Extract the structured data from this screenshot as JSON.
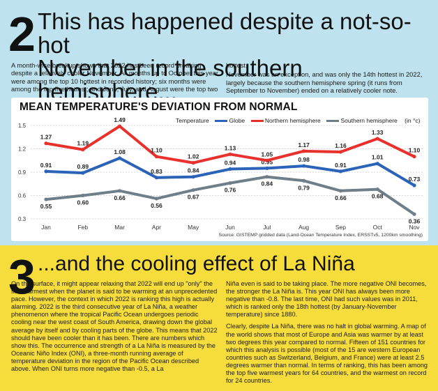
{
  "section2": {
    "number": "2",
    "headline_line1": "This has happened despite a not-so-hot",
    "headline_line2": "November in the southern hemisphere...",
    "body_left": "A month-wise breakup shows that 2022 has been record breaking despite a relatively cooler November. All months up to October this year were among the top 10 hottest in recorded history; six months were among the top five hottest; and June, July, and August were the top two",
    "body_right_1": "hottest.",
    "body_right_2": "November was an exception, and was only the 14th hottest in 2022, largely because the southern hemisphere spring (it runs from September to November) ended on a relatively cooler note."
  },
  "chart_data": {
    "type": "line",
    "title": "MEAN TEMPERATURE'S DEVIATION FROM NORMAL",
    "unit_label": "(in °c)",
    "legend_title": "Temperature",
    "legend_placement": "top-right",
    "categories": [
      "Jan",
      "Feb",
      "Mar",
      "Apr",
      "May",
      "Jun",
      "Jul",
      "Aug",
      "Sep",
      "Oct",
      "Nov"
    ],
    "y_ticks": [
      "1.5",
      "1.2",
      "0.9",
      "0.6",
      "0.3"
    ],
    "ylim": [
      0.3,
      1.5
    ],
    "grid": true,
    "series": [
      {
        "name": "Globe",
        "color": "#2a63b7",
        "values": [
          0.91,
          0.89,
          1.08,
          0.83,
          0.84,
          0.94,
          0.95,
          0.98,
          0.91,
          1.01,
          0.73
        ],
        "labels": [
          "0.91",
          "0.89",
          "1.08",
          "0.83",
          "0.84",
          "0.94",
          "0.95",
          "0.98",
          "0.91",
          "1.01",
          "0.73"
        ]
      },
      {
        "name": "Northern hemisphere",
        "color": "#e8312d",
        "values": [
          1.27,
          1.19,
          1.49,
          1.1,
          1.02,
          1.13,
          1.05,
          1.17,
          1.16,
          1.33,
          1.1
        ],
        "labels": [
          "1.27",
          "1.19",
          "1.49",
          "1.10",
          "1.02",
          "1.13",
          "1.05",
          "1.17",
          "1.16",
          "1.33",
          "1.10"
        ]
      },
      {
        "name": "Southern hemisphere",
        "color": "#6e7f89",
        "values": [
          0.55,
          0.6,
          0.66,
          0.56,
          0.67,
          0.76,
          0.84,
          0.79,
          0.66,
          0.68,
          0.36
        ],
        "labels": [
          "0.55",
          "0.60",
          "0.66",
          "0.56",
          "0.67",
          "0.76",
          "0.84",
          "0.79",
          "0.66",
          "0.68",
          "0.36"
        ]
      }
    ],
    "source": "Source: GISTEMP gridded data (Land-Ocean Temperature Index, ERSSTv5, 1200km smoothing)"
  },
  "section3": {
    "number": "3",
    "headline": "...and the cooling effect of La Niña",
    "body_left": "On the surface, it might appear relaxing that 2022 will end up \"only\" the fifth warmest when the planet is said to be warming at an unprecedented pace. However, the context in which 2022 is ranking this high is actually alarming. 2022 is the third consecutive year of La Niña, a weather phenomenon where the tropical Pacific Ocean undergoes periodic cooling near the west coast of South America, drawing down the global average by itself and by cooling parts of the globe. This means that 2022 should have been cooler than it has been. There are numbers which show this. The occurrence and strength of a La Niña is measured by the Oceanic Niño Index (ONI), a three-month running average of temperature deviation in the region of the Pacific Ocean described above. When ONI turns more negative than -0.5, a La",
    "body_right_1": "Niña even is said to be taking place. The more negative ONI becomes, the stronger the La Niña is. This year ONI has always been more negative than -0.8. The last time, ONI had such values was in 2011, which is ranked only the 18th hottest (by January-November temperature) since 1880.",
    "body_right_2": "Clearly, despite La Niña, there was no halt in global warming. A map of the world shows that most of Europe and Asia was warmer by at least two degrees this year compared to normal. Fifteen of 151 countries for which this analysis is possible (most of the 15 are western European countries such as Switzerland, Belgium, and France) were at least 2.5 degrees warmer than normal. In terms of ranking, this has been among the top five warmest years for 64 countries, and the warmest on record for 24 countries."
  }
}
